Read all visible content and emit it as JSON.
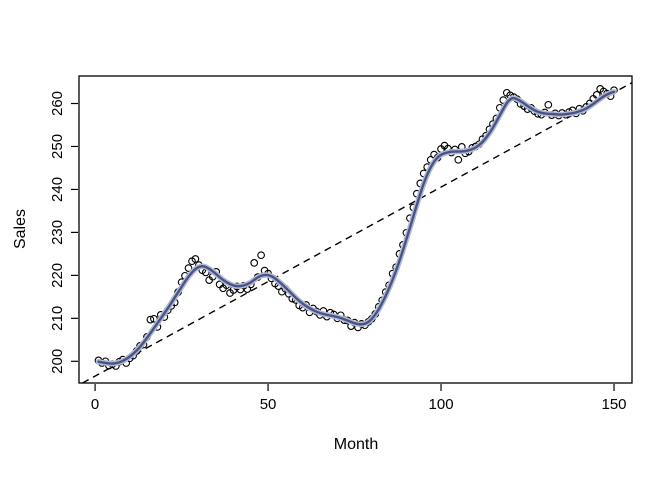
{
  "figure": {
    "kind": "r-base-plot",
    "background": "#ffffff"
  },
  "chart_data": {
    "type": "scatter",
    "title": "",
    "xlabel": "Month",
    "ylabel": "Sales",
    "xticks": [
      0,
      50,
      100,
      150
    ],
    "yticks": [
      200,
      210,
      220,
      230,
      240,
      250,
      260
    ],
    "xlim": [
      -4.65,
      155.2
    ],
    "ylim": [
      194.95,
      266.4
    ],
    "grid": false,
    "legend": null,
    "colors": {
      "point": "#000000",
      "smooth": "#47538a",
      "smooth_halo": "#b3bad0",
      "trend": "#000000",
      "box": "#000000"
    },
    "points": [
      [
        1,
        200.2
      ],
      [
        2,
        199.6
      ],
      [
        3,
        200.0
      ],
      [
        4,
        199.0
      ],
      [
        5,
        199.3
      ],
      [
        6,
        198.9
      ],
      [
        7,
        199.9
      ],
      [
        8,
        200.4
      ],
      [
        9,
        199.6
      ],
      [
        10,
        200.7
      ],
      [
        11,
        201.3
      ],
      [
        12,
        202.4
      ],
      [
        13,
        203.6
      ],
      [
        14,
        203.9
      ],
      [
        15,
        205.7
      ],
      [
        16,
        209.7
      ],
      [
        17,
        209.9
      ],
      [
        18,
        208.0
      ],
      [
        19,
        210.8
      ],
      [
        20,
        210.3
      ],
      [
        21,
        211.9
      ],
      [
        22,
        212.9
      ],
      [
        23,
        213.7
      ],
      [
        24,
        216.1
      ],
      [
        25,
        218.4
      ],
      [
        26,
        219.9
      ],
      [
        27,
        221.7
      ],
      [
        28,
        223.3
      ],
      [
        29,
        223.8
      ],
      [
        30,
        222.4
      ],
      [
        31,
        221.2
      ],
      [
        32,
        220.7
      ],
      [
        33,
        218.9
      ],
      [
        34,
        219.7
      ],
      [
        35,
        220.8
      ],
      [
        36,
        217.9
      ],
      [
        37,
        217.0
      ],
      [
        38,
        217.7
      ],
      [
        39,
        215.9
      ],
      [
        40,
        216.6
      ],
      [
        41,
        217.4
      ],
      [
        42,
        216.7
      ],
      [
        43,
        217.6
      ],
      [
        44,
        216.8
      ],
      [
        45,
        217.9
      ],
      [
        46,
        222.9
      ],
      [
        47,
        219.6
      ],
      [
        48,
        224.7
      ],
      [
        49,
        221.1
      ],
      [
        50,
        220.4
      ],
      [
        51,
        219.3
      ],
      [
        52,
        218.1
      ],
      [
        53,
        217.5
      ],
      [
        54,
        216.2
      ],
      [
        55,
        216.9
      ],
      [
        56,
        215.7
      ],
      [
        57,
        214.6
      ],
      [
        58,
        214.3
      ],
      [
        59,
        213.0
      ],
      [
        60,
        212.5
      ],
      [
        61,
        213.1
      ],
      [
        62,
        211.4
      ],
      [
        63,
        212.3
      ],
      [
        64,
        211.6
      ],
      [
        65,
        210.8
      ],
      [
        66,
        211.7
      ],
      [
        67,
        210.4
      ],
      [
        68,
        211.3
      ],
      [
        69,
        210.9
      ],
      [
        70,
        210.0
      ],
      [
        71,
        210.7
      ],
      [
        72,
        209.6
      ],
      [
        73,
        209.5
      ],
      [
        74,
        208.2
      ],
      [
        75,
        209.0
      ],
      [
        76,
        207.9
      ],
      [
        77,
        208.7
      ],
      [
        78,
        208.4
      ],
      [
        79,
        209.2
      ],
      [
        80,
        209.9
      ],
      [
        81,
        211.0
      ],
      [
        82,
        212.7
      ],
      [
        83,
        214.2
      ],
      [
        84,
        216.1
      ],
      [
        85,
        217.7
      ],
      [
        86,
        220.4
      ],
      [
        87,
        221.9
      ],
      [
        88,
        225.0
      ],
      [
        89,
        227.1
      ],
      [
        90,
        229.9
      ],
      [
        91,
        233.3
      ],
      [
        92,
        235.8
      ],
      [
        93,
        239.0
      ],
      [
        94,
        241.4
      ],
      [
        95,
        243.7
      ],
      [
        96,
        245.2
      ],
      [
        97,
        246.9
      ],
      [
        98,
        248.1
      ],
      [
        99,
        247.4
      ],
      [
        100,
        249.4
      ],
      [
        101,
        250.2
      ],
      [
        102,
        249.5
      ],
      [
        103,
        248.6
      ],
      [
        104,
        249.3
      ],
      [
        105,
        246.9
      ],
      [
        106,
        249.9
      ],
      [
        107,
        248.4
      ],
      [
        108,
        248.8
      ],
      [
        109,
        249.7
      ],
      [
        110,
        250.0
      ],
      [
        111,
        250.5
      ],
      [
        112,
        251.7
      ],
      [
        113,
        252.5
      ],
      [
        114,
        254.0
      ],
      [
        115,
        255.2
      ],
      [
        116,
        256.5
      ],
      [
        117,
        259.0
      ],
      [
        118,
        260.8
      ],
      [
        119,
        262.5
      ],
      [
        120,
        261.9
      ],
      [
        121,
        261.5
      ],
      [
        122,
        261.0
      ],
      [
        123,
        259.9
      ],
      [
        124,
        259.4
      ],
      [
        125,
        258.7
      ],
      [
        126,
        259.0
      ],
      [
        127,
        258.2
      ],
      [
        128,
        257.6
      ],
      [
        129,
        257.4
      ],
      [
        130,
        257.9
      ],
      [
        131,
        259.7
      ],
      [
        132,
        257.3
      ],
      [
        133,
        257.7
      ],
      [
        134,
        257.2
      ],
      [
        135,
        257.8
      ],
      [
        136,
        257.4
      ],
      [
        137,
        258.0
      ],
      [
        138,
        258.4
      ],
      [
        139,
        257.7
      ],
      [
        140,
        258.8
      ],
      [
        141,
        258.3
      ],
      [
        142,
        259.2
      ],
      [
        143,
        260.0
      ],
      [
        144,
        261.1
      ],
      [
        145,
        262.0
      ],
      [
        146,
        263.4
      ],
      [
        147,
        262.8
      ],
      [
        148,
        262.3
      ],
      [
        149,
        261.7
      ],
      [
        150,
        263.1
      ]
    ],
    "smooth": [
      [
        1,
        199.9
      ],
      [
        3,
        199.6
      ],
      [
        5,
        199.4
      ],
      [
        7,
        199.7
      ],
      [
        9,
        200.5
      ],
      [
        11,
        201.7
      ],
      [
        13,
        203.3
      ],
      [
        15,
        205.4
      ],
      [
        17,
        207.7
      ],
      [
        19,
        210.0
      ],
      [
        21,
        212.3
      ],
      [
        23,
        214.8
      ],
      [
        25,
        217.3
      ],
      [
        27,
        219.8
      ],
      [
        29,
        221.6
      ],
      [
        31,
        222.3
      ],
      [
        33,
        221.6
      ],
      [
        35,
        220.3
      ],
      [
        37,
        218.9
      ],
      [
        39,
        217.9
      ],
      [
        41,
        217.4
      ],
      [
        43,
        217.6
      ],
      [
        45,
        218.3
      ],
      [
        47,
        219.6
      ],
      [
        49,
        220.2
      ],
      [
        51,
        219.9
      ],
      [
        53,
        218.7
      ],
      [
        55,
        217.2
      ],
      [
        57,
        215.6
      ],
      [
        59,
        214.0
      ],
      [
        61,
        212.8
      ],
      [
        63,
        211.9
      ],
      [
        65,
        211.2
      ],
      [
        67,
        210.8
      ],
      [
        69,
        210.5
      ],
      [
        71,
        210.1
      ],
      [
        73,
        209.5
      ],
      [
        75,
        208.8
      ],
      [
        77,
        208.5
      ],
      [
        79,
        209.0
      ],
      [
        81,
        210.8
      ],
      [
        83,
        213.5
      ],
      [
        85,
        217.0
      ],
      [
        87,
        221.0
      ],
      [
        89,
        225.8
      ],
      [
        91,
        231.0
      ],
      [
        93,
        236.5
      ],
      [
        95,
        241.5
      ],
      [
        97,
        245.3
      ],
      [
        99,
        247.6
      ],
      [
        101,
        248.5
      ],
      [
        103,
        248.8
      ],
      [
        105,
        248.8
      ],
      [
        107,
        248.9
      ],
      [
        109,
        249.3
      ],
      [
        111,
        250.2
      ],
      [
        113,
        251.9
      ],
      [
        115,
        254.3
      ],
      [
        117,
        257.3
      ],
      [
        119,
        260.2
      ],
      [
        120,
        261.0
      ],
      [
        121,
        261.4
      ],
      [
        123,
        260.6
      ],
      [
        125,
        259.4
      ],
      [
        127,
        258.4
      ],
      [
        129,
        257.8
      ],
      [
        131,
        257.6
      ],
      [
        133,
        257.5
      ],
      [
        135,
        257.4
      ],
      [
        137,
        257.6
      ],
      [
        139,
        257.9
      ],
      [
        141,
        258.4
      ],
      [
        143,
        259.3
      ],
      [
        145,
        260.5
      ],
      [
        147,
        261.7
      ],
      [
        149,
        262.5
      ],
      [
        150,
        262.7
      ]
    ],
    "trend_line": {
      "style": "dashed",
      "x1": -3.64,
      "y1": 194.95,
      "x2": 155.2,
      "y2": 264.85
    }
  }
}
